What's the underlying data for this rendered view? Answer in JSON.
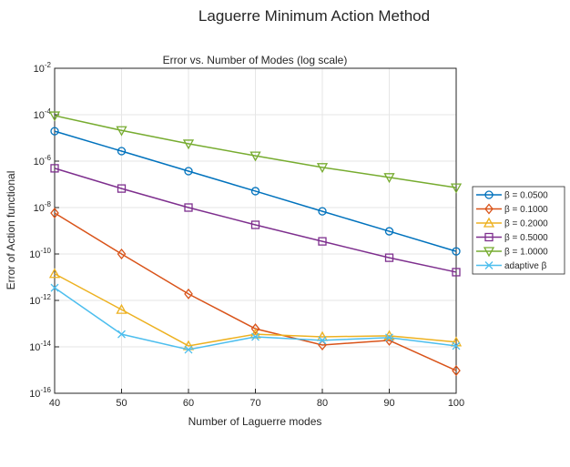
{
  "chart_data": {
    "type": "line",
    "suptitle": "Laguerre Minimum Action Method",
    "title": "Error vs. Number of Modes (log scale)",
    "xlabel": "Number of Laguerre modes",
    "ylabel": "Error of Action functional",
    "x": [
      40,
      50,
      60,
      70,
      80,
      90,
      100
    ],
    "xlim": [
      40,
      100
    ],
    "xticks": [
      40,
      50,
      60,
      70,
      80,
      90,
      100
    ],
    "ylim": [
      1e-16,
      0.01
    ],
    "yticks": [
      {
        "value": 1e-16,
        "label": "10^-16"
      },
      {
        "value": 1e-14,
        "label": "10^-14"
      },
      {
        "value": 1e-12,
        "label": "10^-12"
      },
      {
        "value": 1e-10,
        "label": "10^-10"
      },
      {
        "value": 1e-08,
        "label": "10^-8"
      },
      {
        "value": 1e-06,
        "label": "10^-6"
      },
      {
        "value": 0.0001,
        "label": "10^-4"
      },
      {
        "value": 0.01,
        "label": "10^-2"
      }
    ],
    "yscale": "log",
    "grid": true,
    "legend": "right",
    "series": [
      {
        "name": "β = 0.0500",
        "color": "#0072bd",
        "marker": "circle",
        "values": [
          1.95e-05,
          2.7e-06,
          3.7e-07,
          5.1e-08,
          6.9e-09,
          9.5e-10,
          1.3e-10
        ]
      },
      {
        "name": "β = 0.1000",
        "color": "#d95319",
        "marker": "diamond",
        "values": [
          5.8e-09,
          1e-10,
          1.9e-12,
          6e-14,
          1.2e-14,
          1.9e-14,
          9.5e-16
        ]
      },
      {
        "name": "β = 0.2000",
        "color": "#edb120",
        "marker": "triangle-up",
        "values": [
          1.4e-11,
          4e-13,
          1.1e-14,
          3.5e-14,
          2.7e-14,
          3e-14,
          1.6e-14
        ]
      },
      {
        "name": "β = 0.5000",
        "color": "#7e2f8e",
        "marker": "square",
        "values": [
          4.9e-07,
          6.6e-08,
          1e-08,
          1.8e-09,
          3.5e-10,
          6.9e-11,
          1.65e-11
        ]
      },
      {
        "name": "β = 1.0000",
        "color": "#77ac30",
        "marker": "triangle-down",
        "values": [
          9.1e-05,
          2.1e-05,
          5.6e-06,
          1.7e-06,
          5.4e-07,
          2e-07,
          7.2e-08
        ]
      },
      {
        "name": "adaptive β",
        "color": "#4dbeee",
        "marker": "x",
        "values": [
          3.5e-12,
          3.5e-14,
          7.6e-15,
          2.7e-14,
          1.9e-14,
          2.5e-14,
          1.1e-14
        ]
      }
    ]
  }
}
